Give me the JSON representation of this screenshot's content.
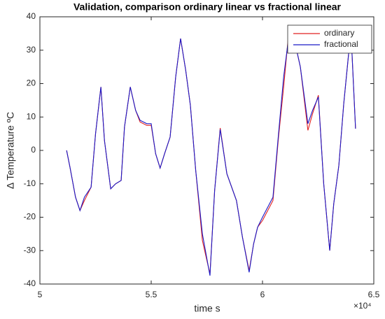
{
  "chart_data": {
    "type": "line",
    "title": "Validation, comparison ordinary linear vs fractional linear",
    "xlabel": "time s",
    "ylabel": "Δ Temperature ºC",
    "x_exponent": "×10⁴",
    "x": [
      5.12,
      5.135,
      5.16,
      5.18,
      5.2,
      5.23,
      5.25,
      5.274,
      5.29,
      5.318,
      5.34,
      5.365,
      5.38,
      5.406,
      5.43,
      5.45,
      5.48,
      5.5,
      5.52,
      5.54,
      5.56,
      5.585,
      5.61,
      5.632,
      5.655,
      5.676,
      5.7,
      5.73,
      5.764,
      5.785,
      5.81,
      5.84,
      5.883,
      5.91,
      5.94,
      5.96,
      5.978,
      6.0,
      6.047,
      6.072,
      6.095,
      6.116,
      6.14,
      6.17,
      6.204,
      6.225,
      6.251,
      6.275,
      6.302,
      6.32,
      6.343,
      6.365,
      6.387,
      6.4,
      6.418
    ],
    "series": [
      {
        "name": "ordinary",
        "color": "#e02020",
        "values": [
          0,
          -5,
          -14,
          -18,
          -15,
          -11,
          5,
          19,
          3,
          -11.5,
          -10,
          -9,
          7,
          19,
          12,
          8.5,
          7.5,
          7.5,
          -1,
          -5.3,
          -1,
          4,
          22,
          33.5,
          24,
          13.5,
          -6,
          -27,
          -37,
          -12,
          6.7,
          -7,
          -15,
          -26,
          -36,
          -28,
          -23,
          -21,
          -15,
          4,
          19,
          34,
          34,
          25,
          6,
          11,
          16.5,
          -10,
          -30,
          -16,
          -4.5,
          14,
          29,
          32,
          6.5
        ]
      },
      {
        "name": "fractional",
        "color": "#1a1ac8",
        "values": [
          0,
          -5,
          -14,
          -18,
          -14,
          -11,
          5,
          19,
          3,
          -11.5,
          -10,
          -9,
          7,
          19,
          12,
          9,
          8,
          8,
          -1,
          -5.3,
          -1,
          4,
          22,
          33.5,
          24,
          13.5,
          -6,
          -25,
          -37.5,
          -12,
          6.3,
          -7,
          -15,
          -26,
          -36.5,
          -28,
          -23,
          -20,
          -14,
          5,
          22,
          33,
          34,
          25,
          8,
          12,
          16,
          -10,
          -30,
          -16,
          -4.5,
          14,
          29,
          32,
          6.5
        ]
      }
    ],
    "xlim": [
      5,
      6.5
    ],
    "xticks": [
      5,
      5.5,
      6,
      6.5
    ],
    "ylim": [
      -40,
      40
    ],
    "yticks": [
      -40,
      -30,
      -20,
      -10,
      0,
      10,
      20,
      30,
      40
    ],
    "grid": false,
    "legend": "northeast"
  }
}
